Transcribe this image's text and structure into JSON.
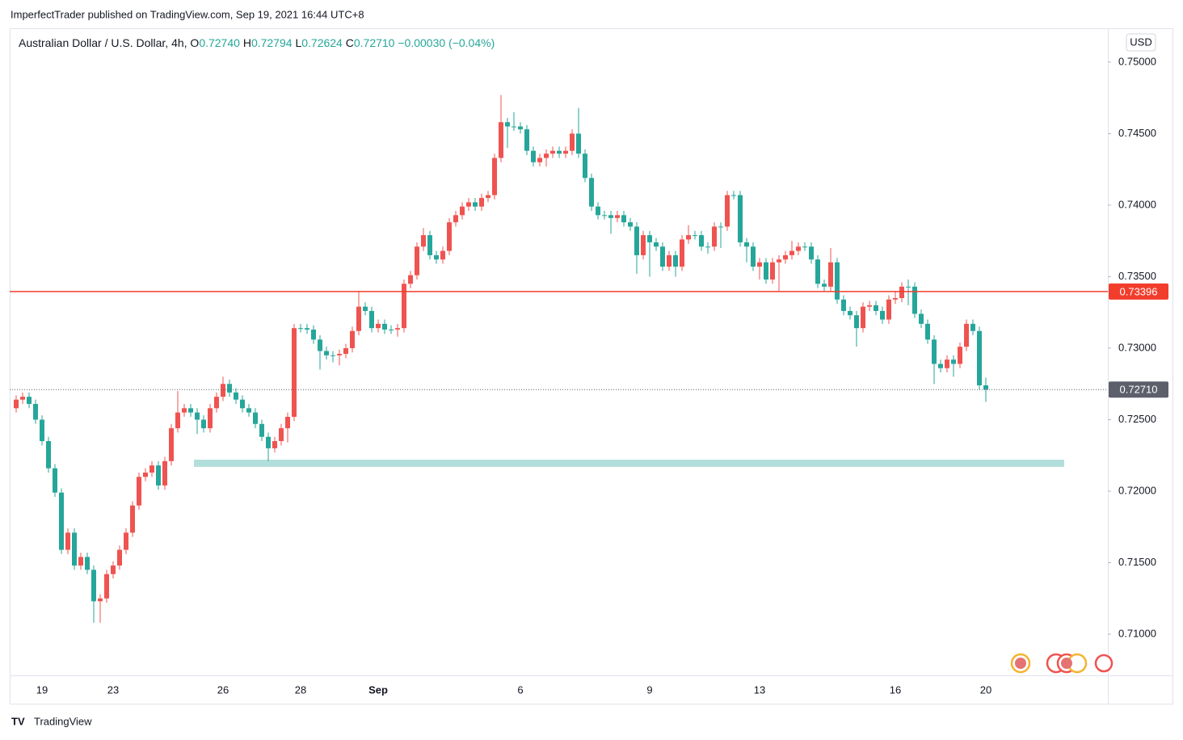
{
  "header": {
    "text": "ImperfectTrader published on TradingView.com, Sep 19, 2021 16:44 UTC+8"
  },
  "footer": {
    "brand": "TradingView"
  },
  "chart_data": {
    "type": "candlestick",
    "currency": "USD",
    "legend": {
      "symbol": "Australian Dollar / U.S. Dollar, 4h,",
      "fields": [
        {
          "key": "O",
          "value": "0.72740"
        },
        {
          "key": "H",
          "value": "0.72794"
        },
        {
          "key": "L",
          "value": "0.72624"
        },
        {
          "key": "C",
          "value": "0.72710"
        }
      ],
      "change": "−0.00030 (−0.04%)"
    },
    "up_color": "#ef5350",
    "down_color": "#26a69a",
    "categories": [
      null,
      null,
      null,
      null,
      "19",
      null,
      null,
      null,
      null,
      null,
      null,
      null,
      null,
      null,
      null,
      "23",
      null,
      null,
      null,
      null,
      null,
      null,
      null,
      null,
      null,
      null,
      null,
      null,
      null,
      null,
      null,
      null,
      "26",
      null,
      null,
      null,
      null,
      null,
      null,
      null,
      null,
      null,
      null,
      null,
      "28",
      null,
      null,
      null,
      null,
      null,
      null,
      null,
      null,
      null,
      null,
      null,
      "Sep",
      null,
      null,
      null,
      null,
      null,
      null,
      null,
      null,
      null,
      null,
      null,
      null,
      null,
      null,
      null,
      null,
      null,
      null,
      null,
      null,
      null,
      "6",
      null,
      null,
      null,
      null,
      null,
      null,
      null,
      null,
      null,
      null,
      null,
      null,
      null,
      null,
      null,
      null,
      null,
      null,
      null,
      "9",
      null,
      null,
      null,
      null,
      null,
      null,
      null,
      null,
      null,
      null,
      null,
      null,
      null,
      null,
      null,
      null,
      "13",
      null,
      null,
      null,
      null,
      null,
      null,
      null,
      null,
      null,
      null,
      null,
      null,
      null,
      null,
      null,
      null,
      null,
      null,
      null,
      null,
      "16",
      null,
      null,
      null,
      null,
      null,
      null,
      null,
      null,
      null,
      null,
      null,
      null,
      null,
      "20"
    ],
    "open": [
      0.7258,
      0.7264,
      0.7266,
      0.7261,
      0.725,
      0.7235,
      0.7216,
      0.7199,
      0.7159,
      0.7171,
      0.7148,
      0.7154,
      0.7145,
      0.7123,
      0.7125,
      0.7142,
      0.7148,
      0.7159,
      0.7171,
      0.719,
      0.721,
      0.7213,
      0.7218,
      0.7204,
      0.7221,
      0.7244,
      0.7255,
      0.7258,
      0.7255,
      0.725,
      0.7244,
      0.7258,
      0.7266,
      0.7275,
      0.7269,
      0.7264,
      0.7258,
      0.7255,
      0.7247,
      0.7238,
      0.723,
      0.7235,
      0.7244,
      0.7252,
      0.7314,
      0.7314,
      0.7313,
      0.7306,
      0.7298,
      0.7295,
      0.7295,
      0.7296,
      0.73,
      0.7312,
      0.7329,
      0.7326,
      0.7314,
      0.7317,
      0.7313,
      0.7313,
      0.7314,
      0.7345,
      0.7351,
      0.7371,
      0.7379,
      0.7365,
      0.7362,
      0.7368,
      0.7388,
      0.7393,
      0.7399,
      0.7402,
      0.7399,
      0.7405,
      0.7407,
      0.7433,
      0.7458,
      0.7455,
      0.7455,
      0.7453,
      0.7438,
      0.743,
      0.7433,
      0.7436,
      0.7438,
      0.7436,
      0.7438,
      0.745,
      0.7436,
      0.7419,
      0.7399,
      0.7393,
      0.7393,
      0.7391,
      0.7393,
      0.7388,
      0.7385,
      0.7365,
      0.7379,
      0.7374,
      0.7371,
      0.7357,
      0.7365,
      0.7357,
      0.7376,
      0.7379,
      0.7379,
      0.7371,
      0.7371,
      0.7385,
      0.7385,
      0.7407,
      0.7407,
      0.7374,
      0.7371,
      0.7357,
      0.736,
      0.7348,
      0.736,
      0.7362,
      0.7365,
      0.7368,
      0.7371,
      0.7371,
      0.7362,
      0.7345,
      0.7343,
      0.736,
      0.7334,
      0.7326,
      0.7323,
      0.7314,
      0.7329,
      0.733,
      0.7326,
      0.732,
      0.7334,
      0.7335,
      0.7343,
      0.7343,
      0.7324,
      0.7317,
      0.7306,
      0.7289,
      0.7286,
      0.7292,
      0.7289,
      0.7301,
      0.7317,
      0.7312,
      0.7274
    ],
    "high": [
      0.7267,
      0.7269,
      0.7269,
      0.7264,
      0.7253,
      0.7238,
      0.7219,
      0.7202,
      0.7174,
      0.7174,
      0.7157,
      0.7157,
      0.7148,
      0.7128,
      0.7145,
      0.7151,
      0.7162,
      0.7174,
      0.7193,
      0.7213,
      0.7216,
      0.7221,
      0.7221,
      0.7224,
      0.7247,
      0.727,
      0.7261,
      0.7261,
      0.7258,
      0.7253,
      0.7261,
      0.7269,
      0.728,
      0.7278,
      0.7272,
      0.7267,
      0.7261,
      0.7258,
      0.725,
      0.7241,
      0.7238,
      0.7247,
      0.7255,
      0.7317,
      0.7317,
      0.7317,
      0.7316,
      0.7309,
      0.7301,
      0.7298,
      0.7299,
      0.7303,
      0.7315,
      0.734,
      0.7332,
      0.7329,
      0.732,
      0.732,
      0.7316,
      0.7317,
      0.7348,
      0.7354,
      0.7374,
      0.7384,
      0.7382,
      0.7368,
      0.7371,
      0.7391,
      0.7396,
      0.7402,
      0.7405,
      0.7405,
      0.7408,
      0.741,
      0.7436,
      0.7477,
      0.7461,
      0.7465,
      0.7458,
      0.7456,
      0.7441,
      0.7436,
      0.7439,
      0.7441,
      0.7441,
      0.7441,
      0.7453,
      0.7468,
      0.7439,
      0.7422,
      0.7402,
      0.7396,
      0.7396,
      0.7396,
      0.7396,
      0.7391,
      0.7388,
      0.7382,
      0.7382,
      0.7377,
      0.7374,
      0.7368,
      0.7368,
      0.7379,
      0.7386,
      0.7382,
      0.7382,
      0.7374,
      0.7388,
      0.7388,
      0.741,
      0.741,
      0.741,
      0.7377,
      0.7374,
      0.7363,
      0.7363,
      0.7363,
      0.7365,
      0.7368,
      0.7375,
      0.7374,
      0.7374,
      0.7374,
      0.7365,
      0.7348,
      0.737,
      0.7363,
      0.7337,
      0.7329,
      0.7326,
      0.7332,
      0.7333,
      0.7333,
      0.7329,
      0.7337,
      0.734,
      0.7346,
      0.7348,
      0.7346,
      0.7327,
      0.732,
      0.7309,
      0.7292,
      0.7295,
      0.7295,
      0.7304,
      0.732,
      0.732,
      0.7315,
      0.72794
    ],
    "low": [
      0.7255,
      0.7261,
      0.7258,
      0.7247,
      0.7232,
      0.7213,
      0.7196,
      0.7156,
      0.7156,
      0.7145,
      0.7145,
      0.7142,
      0.7108,
      0.7108,
      0.7122,
      0.7139,
      0.7145,
      0.7156,
      0.7168,
      0.7187,
      0.7207,
      0.721,
      0.7201,
      0.7201,
      0.7218,
      0.7241,
      0.7252,
      0.7252,
      0.724,
      0.7241,
      0.7241,
      0.7255,
      0.7263,
      0.7266,
      0.7261,
      0.7255,
      0.7252,
      0.7244,
      0.7235,
      0.7221,
      0.7227,
      0.7232,
      0.7234,
      0.7249,
      0.7311,
      0.731,
      0.7303,
      0.7285,
      0.7292,
      0.729,
      0.7288,
      0.7293,
      0.7297,
      0.7309,
      0.7323,
      0.7311,
      0.7311,
      0.731,
      0.731,
      0.7308,
      0.7311,
      0.7342,
      0.7348,
      0.7368,
      0.7362,
      0.7359,
      0.7359,
      0.7365,
      0.7385,
      0.739,
      0.7396,
      0.7396,
      0.7396,
      0.7402,
      0.7404,
      0.743,
      0.744,
      0.7452,
      0.745,
      0.7435,
      0.7427,
      0.7427,
      0.7427,
      0.7433,
      0.7433,
      0.7433,
      0.7435,
      0.7433,
      0.7416,
      0.7396,
      0.739,
      0.739,
      0.738,
      0.7388,
      0.7385,
      0.7382,
      0.7352,
      0.7362,
      0.735,
      0.7368,
      0.7354,
      0.7354,
      0.735,
      0.7354,
      0.7373,
      0.7376,
      0.7368,
      0.7366,
      0.7368,
      0.737,
      0.7382,
      0.7404,
      0.7371,
      0.736,
      0.7354,
      0.7348,
      0.7345,
      0.7345,
      0.734,
      0.7359,
      0.7362,
      0.7365,
      0.7368,
      0.7359,
      0.7342,
      0.734,
      0.734,
      0.7331,
      0.7323,
      0.732,
      0.7301,
      0.7311,
      0.7326,
      0.7323,
      0.7317,
      0.7317,
      0.7331,
      0.7332,
      0.733,
      0.7321,
      0.7314,
      0.7303,
      0.7275,
      0.7283,
      0.7283,
      0.728,
      0.7286,
      0.7298,
      0.7309,
      0.7271,
      0.72624
    ],
    "close": [
      0.7264,
      0.7266,
      0.7261,
      0.725,
      0.7235,
      0.7216,
      0.7199,
      0.7159,
      0.7171,
      0.7148,
      0.7154,
      0.7145,
      0.7123,
      0.7125,
      0.7142,
      0.7148,
      0.7159,
      0.7171,
      0.719,
      0.721,
      0.7213,
      0.7218,
      0.7204,
      0.7221,
      0.7244,
      0.7255,
      0.7258,
      0.7255,
      0.725,
      0.7244,
      0.7258,
      0.7266,
      0.7275,
      0.7269,
      0.7264,
      0.7258,
      0.7255,
      0.7247,
      0.7238,
      0.723,
      0.7235,
      0.7244,
      0.7252,
      0.7314,
      0.7314,
      0.7313,
      0.7306,
      0.7298,
      0.7295,
      0.7295,
      0.7296,
      0.73,
      0.7312,
      0.7329,
      0.7326,
      0.7314,
      0.7317,
      0.7313,
      0.7313,
      0.7314,
      0.7345,
      0.7351,
      0.7371,
      0.7379,
      0.7365,
      0.7362,
      0.7368,
      0.7388,
      0.7393,
      0.7399,
      0.7402,
      0.7399,
      0.7405,
      0.7407,
      0.7433,
      0.7458,
      0.7455,
      0.7455,
      0.7453,
      0.7438,
      0.743,
      0.7433,
      0.7436,
      0.7438,
      0.7436,
      0.7438,
      0.745,
      0.7436,
      0.7419,
      0.7399,
      0.7393,
      0.7393,
      0.7391,
      0.7393,
      0.7388,
      0.7385,
      0.7365,
      0.7379,
      0.7374,
      0.7371,
      0.7357,
      0.7365,
      0.7357,
      0.7376,
      0.7379,
      0.7379,
      0.7371,
      0.7371,
      0.7385,
      0.7385,
      0.7407,
      0.7407,
      0.7374,
      0.7371,
      0.7357,
      0.736,
      0.7348,
      0.736,
      0.7362,
      0.7365,
      0.7368,
      0.7371,
      0.7371,
      0.7362,
      0.7345,
      0.7343,
      0.736,
      0.7334,
      0.7326,
      0.7323,
      0.7314,
      0.7329,
      0.733,
      0.7326,
      0.732,
      0.7334,
      0.7335,
      0.7343,
      0.7343,
      0.7324,
      0.7317,
      0.7306,
      0.7289,
      0.7286,
      0.7292,
      0.7289,
      0.7301,
      0.7317,
      0.7312,
      0.7274,
      0.7271
    ],
    "ylim": [
      0.70712,
      0.75231
    ],
    "yticks": [
      {
        "value": 0.71,
        "label": "0.71000"
      },
      {
        "value": 0.715,
        "label": "0.71500"
      },
      {
        "value": 0.72,
        "label": "0.72000"
      },
      {
        "value": 0.725,
        "label": "0.72500"
      },
      {
        "value": 0.73,
        "label": "0.73000"
      },
      {
        "value": 0.735,
        "label": "0.73500"
      },
      {
        "value": 0.74,
        "label": "0.74000"
      },
      {
        "value": 0.745,
        "label": "0.74500"
      },
      {
        "value": 0.75,
        "label": "0.75000"
      }
    ],
    "grid": false,
    "hline": {
      "value": 0.73396,
      "value_label": "0.73396",
      "color": "#f23d2d"
    },
    "last_price": {
      "value": 0.7271,
      "value_label": "0.72710",
      "color": "#5d606b"
    },
    "zone": {
      "top": 0.7222,
      "bottom": 0.7217,
      "color": "#b2dfdb"
    }
  }
}
